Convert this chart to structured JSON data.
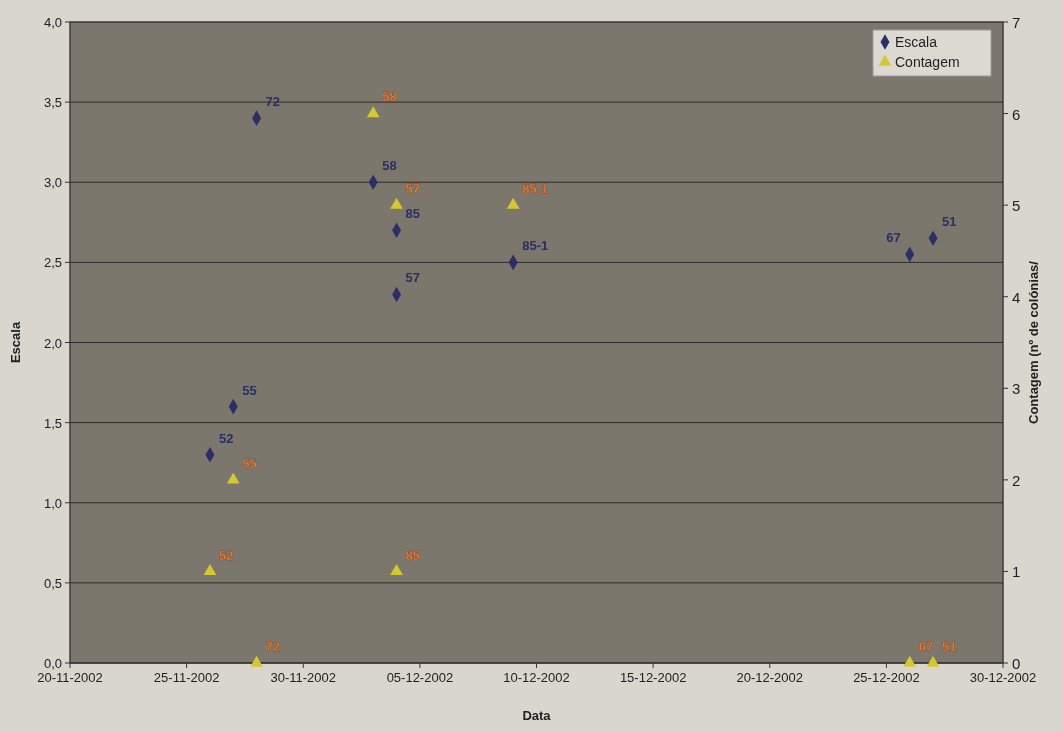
{
  "chart_data": {
    "type": "scatter",
    "xlabel": "Data",
    "ylabel": "Escala",
    "y2label": "Contagem (nº de colónias/",
    "xlim": [
      "2002-11-20",
      "2002-12-30"
    ],
    "xticks": [
      {
        "value": "2002-11-20",
        "label": "20-11-2002"
      },
      {
        "value": "2002-11-25",
        "label": "25-11-2002"
      },
      {
        "value": "2002-11-30",
        "label": "30-11-2002"
      },
      {
        "value": "2002-12-05",
        "label": "05-12-2002"
      },
      {
        "value": "2002-12-10",
        "label": "10-12-2002"
      },
      {
        "value": "2002-12-15",
        "label": "15-12-2002"
      },
      {
        "value": "2002-12-20",
        "label": "20-12-2002"
      },
      {
        "value": "2002-12-25",
        "label": "25-12-2002"
      },
      {
        "value": "2002-12-30",
        "label": "30-12-2002"
      }
    ],
    "ylim": [
      0,
      4
    ],
    "yticks": [
      {
        "value": 0,
        "label": "0,0"
      },
      {
        "value": 0.5,
        "label": "0,5"
      },
      {
        "value": 1,
        "label": "1,0"
      },
      {
        "value": 1.5,
        "label": "1,5"
      },
      {
        "value": 2,
        "label": "2,0"
      },
      {
        "value": 2.5,
        "label": "2,5"
      },
      {
        "value": 3,
        "label": "3,0"
      },
      {
        "value": 3.5,
        "label": "3,5"
      },
      {
        "value": 4,
        "label": "4,0"
      }
    ],
    "y2lim": [
      0,
      7
    ],
    "y2ticks": [
      0,
      1,
      2,
      3,
      4,
      5,
      6,
      7
    ],
    "grid": "y",
    "legend": "top right",
    "annotations": [
      {
        "text": "52",
        "x": "2002-11-26",
        "y": 1.3
      },
      {
        "text": "55",
        "x": "2002-11-27",
        "y": 1.6
      },
      {
        "text": "72",
        "x": "2002-11-28",
        "y": 3.4
      },
      {
        "text": "58",
        "x": "2002-12-03",
        "y": 3.0
      },
      {
        "text": "85",
        "x": "2002-12-04",
        "y": 2.7
      },
      {
        "text": "57",
        "x": "2002-12-04",
        "y": 2.3
      },
      {
        "text": "85-1",
        "x": "2002-12-09",
        "y": 2.5
      },
      {
        "text": "67",
        "x": "2002-12-26",
        "y": 2.55
      },
      {
        "text": "51",
        "x": "2002-12-27",
        "y": 2.65
      },
      {
        "text": "52",
        "x": "2002-11-26",
        "y": 0.57
      },
      {
        "text": "55",
        "x": "2002-11-27",
        "y": 1.14
      },
      {
        "text": "72",
        "x": "2002-11-28",
        "y": 0
      },
      {
        "text": "58",
        "x": "2002-12-03",
        "y": 3.43
      },
      {
        "text": "57",
        "x": "2002-12-04",
        "y": 2.86
      },
      {
        "text": "85",
        "x": "2002-12-04",
        "y": 0.57
      },
      {
        "text": "85-1",
        "x": "2002-12-09",
        "y": 2.86
      },
      {
        "text": "67",
        "x": "2002-12-26",
        "y": 0
      },
      {
        "text": "51",
        "x": "2002-12-27",
        "y": 0
      }
    ],
    "series": [
      {
        "name": "Escala",
        "color": "#2a2f66",
        "marker": "diamond",
        "x": [
          "2002-11-26",
          "2002-11-27",
          "2002-11-28",
          "2002-12-03",
          "2002-12-04",
          "2002-12-04",
          "2002-12-09",
          "2002-12-26",
          "2002-12-27"
        ],
        "values": [
          1.3,
          1.6,
          3.4,
          3.0,
          2.7,
          2.3,
          2.5,
          2.55,
          2.65
        ]
      },
      {
        "name": "Contagem",
        "color": "#d4c830",
        "marker": "triangle",
        "axis": "y2",
        "x": [
          "2002-11-26",
          "2002-11-27",
          "2002-11-28",
          "2002-12-03",
          "2002-12-04",
          "2002-12-04",
          "2002-12-09",
          "2002-12-26",
          "2002-12-27"
        ],
        "values": [
          1,
          2,
          0,
          6,
          5,
          1,
          5,
          0,
          0
        ]
      }
    ]
  }
}
